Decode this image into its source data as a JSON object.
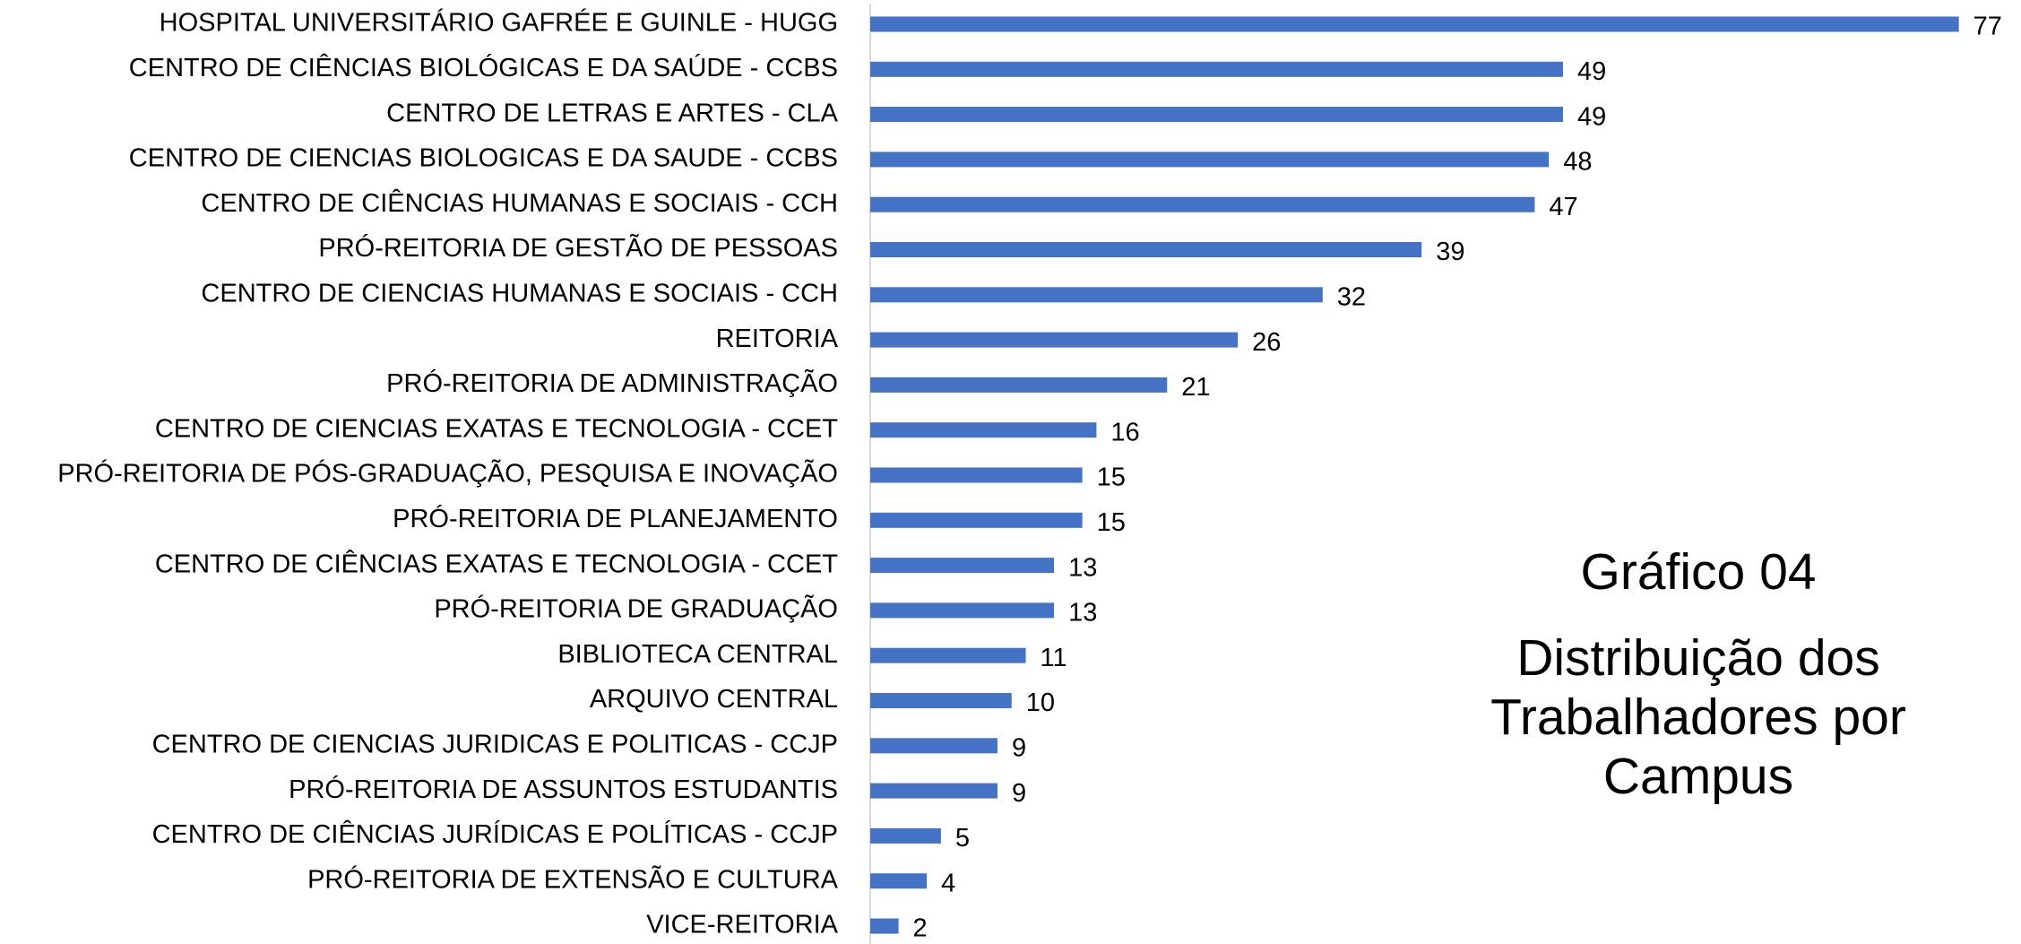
{
  "chart_data": {
    "type": "hbar",
    "title": "Gráfico 04",
    "subtitle": "Distribuição dos Trabalhadores por Campus",
    "categories": [
      "HOSPITAL UNIVERSITÁRIO GAFRÉE E GUINLE - HUGG",
      "CENTRO DE CIÊNCIAS BIOLÓGICAS E DA SAÚDE - CCBS",
      "CENTRO DE LETRAS E ARTES - CLA",
      "CENTRO DE CIENCIAS BIOLOGICAS E DA SAUDE - CCBS",
      "CENTRO DE CIÊNCIAS HUMANAS E SOCIAIS - CCH",
      "PRÓ-REITORIA DE GESTÃO DE PESSOAS",
      "CENTRO DE CIENCIAS HUMANAS E SOCIAIS - CCH",
      "REITORIA",
      "PRÓ-REITORIA DE ADMINISTRAÇÃO",
      "CENTRO DE CIENCIAS EXATAS E TECNOLOGIA - CCET",
      "PRÓ-REITORIA DE PÓS-GRADUAÇÃO, PESQUISA E INOVAÇÃO",
      "PRÓ-REITORIA DE PLANEJAMENTO",
      "CENTRO DE CIÊNCIAS EXATAS E TECNOLOGIA - CCET",
      "PRÓ-REITORIA DE GRADUAÇÃO",
      "BIBLIOTECA CENTRAL",
      "ARQUIVO CENTRAL",
      "CENTRO DE CIENCIAS JURIDICAS E POLITICAS - CCJP",
      "PRÓ-REITORIA DE ASSUNTOS ESTUDANTIS",
      "CENTRO DE CIÊNCIAS JURÍDICAS E POLÍTICAS - CCJP",
      "PRÓ-REITORIA DE EXTENSÃO E CULTURA",
      "VICE-REITORIA"
    ],
    "values": [
      77,
      49,
      49,
      48,
      47,
      39,
      32,
      26,
      21,
      16,
      15,
      15,
      13,
      13,
      11,
      10,
      9,
      9,
      5,
      4,
      2
    ],
    "color": "#4472c4",
    "xlim": [
      0,
      80
    ]
  }
}
